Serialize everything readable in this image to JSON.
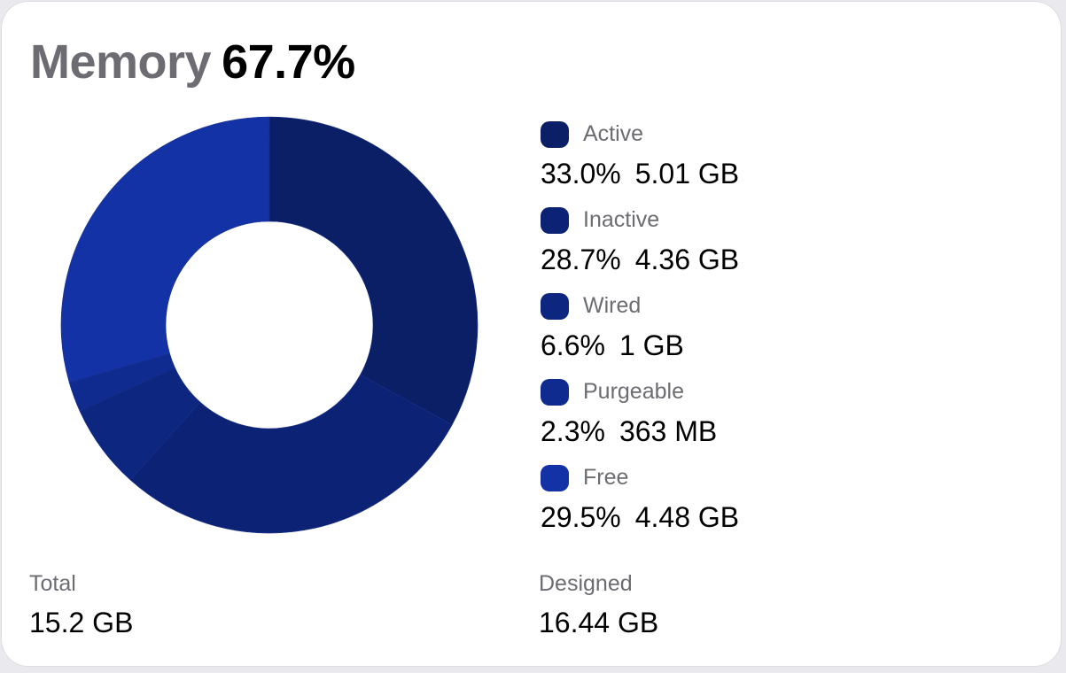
{
  "header": {
    "label": "Memory",
    "value": "67.7%"
  },
  "chart_data": {
    "type": "pie",
    "style": "donut",
    "series": [
      {
        "name": "Active",
        "percent_label": "33.0%",
        "size": "5.01 GB",
        "value": 33.0,
        "color": "#0a1f66"
      },
      {
        "name": "Inactive",
        "percent_label": "28.7%",
        "size": "4.36 GB",
        "value": 28.7,
        "color": "#0c2375"
      },
      {
        "name": "Wired",
        "percent_label": "6.6%",
        "size": "1 GB",
        "value": 6.6,
        "color": "#0d2781"
      },
      {
        "name": "Purgeable",
        "percent_label": "2.3%",
        "size": "363 MB",
        "value": 2.3,
        "color": "#0f2b8f"
      },
      {
        "name": "Free",
        "percent_label": "29.5%",
        "size": "4.48 GB",
        "value": 29.5,
        "color": "#1232a6"
      }
    ]
  },
  "footer": {
    "total_label": "Total",
    "total_value": "15.2 GB",
    "designed_label": "Designed",
    "designed_value": "16.44 GB"
  }
}
